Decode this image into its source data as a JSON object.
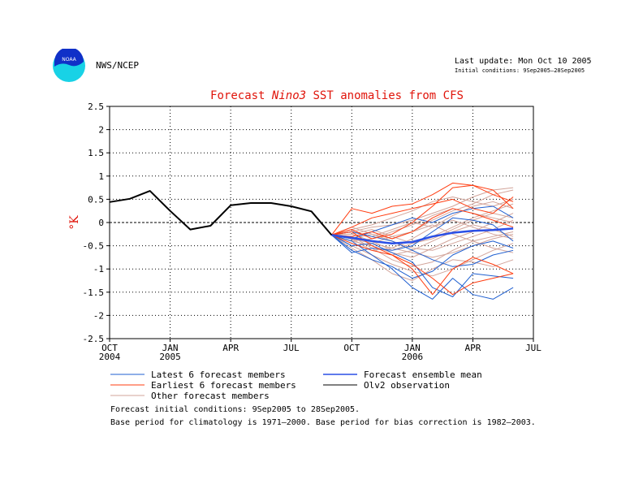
{
  "header": {
    "logo_text": "NOAA",
    "org": "NWS/NCEP",
    "last_update": "Last update: Mon Oct 10 2005",
    "initial_conditions": "Initial conditions: 9Sep2005–28Sep2005"
  },
  "colors": {
    "latest": "#1f5fd0",
    "earliest": "#ff3c10",
    "other": "#d2a49a",
    "ensemble_mean": "#2a4fe6",
    "observation": "#000000",
    "title": "#e0140a"
  },
  "chart_data": {
    "type": "line",
    "title_parts": [
      "Forecast ",
      "Nino3",
      "  SST anomalies from CFS"
    ],
    "ylabel": "°K",
    "ylim": [
      -2.5,
      2.5
    ],
    "yticks": [
      2.5,
      2,
      1.5,
      1,
      0.5,
      0,
      -0.5,
      -1,
      -1.5,
      -2,
      -2.5
    ],
    "ytick_labels": [
      "2.5",
      "2",
      "1.5",
      "1",
      "0.5",
      "0",
      "-0.5",
      "-1",
      "-1.5",
      "-2",
      "-2.5"
    ],
    "x_start": "2004-10",
    "x_end": "2006-07",
    "xticks": [
      {
        "month": "2004-10",
        "label": "OCT",
        "year": "2004"
      },
      {
        "month": "2005-01",
        "label": "JAN",
        "year": "2005"
      },
      {
        "month": "2005-04",
        "label": "APR",
        "year": ""
      },
      {
        "month": "2005-07",
        "label": "JUL",
        "year": ""
      },
      {
        "month": "2005-10",
        "label": "OCT",
        "year": ""
      },
      {
        "month": "2006-01",
        "label": "JAN",
        "year": "2006"
      },
      {
        "month": "2006-04",
        "label": "APR",
        "year": ""
      },
      {
        "month": "2006-07",
        "label": "JUL",
        "year": ""
      }
    ],
    "grid": true,
    "forecast_months": [
      "2005-09",
      "2005-10",
      "2005-11",
      "2005-12",
      "2006-01",
      "2006-02",
      "2006-03",
      "2006-04",
      "2006-05",
      "2006-06"
    ],
    "observation": {
      "name": "Olv2 observation",
      "months": [
        "2004-10",
        "2004-11",
        "2004-12",
        "2005-01",
        "2005-02",
        "2005-03",
        "2005-04",
        "2005-05",
        "2005-06",
        "2005-07",
        "2005-08",
        "2005-09"
      ],
      "values": [
        0.44,
        0.51,
        0.68,
        0.25,
        -0.15,
        -0.07,
        0.37,
        0.42,
        0.42,
        0.35,
        0.24,
        -0.27
      ]
    },
    "ensemble_mean": {
      "name": "Forecast ensemble mean",
      "values": [
        -0.27,
        -0.33,
        -0.4,
        -0.45,
        -0.42,
        -0.3,
        -0.22,
        -0.18,
        -0.16,
        -0.13
      ]
    },
    "latest_members": [
      [
        -0.27,
        -0.65,
        -0.55,
        -0.6,
        -0.5,
        -0.2,
        0.1,
        0.05,
        -0.05,
        -0.4
      ],
      [
        -0.27,
        -0.4,
        -0.7,
        -1.0,
        -1.4,
        -1.65,
        -1.2,
        -1.55,
        -1.65,
        -1.4
      ],
      [
        -0.27,
        -0.5,
        -0.45,
        -0.65,
        -0.85,
        -1.4,
        -1.6,
        -1.1,
        -1.15,
        -1.2
      ],
      [
        -0.27,
        -0.35,
        -0.2,
        -0.05,
        0.1,
        0.0,
        0.2,
        0.3,
        0.35,
        0.1
      ],
      [
        -0.27,
        -0.2,
        -0.3,
        -0.4,
        -0.6,
        -0.8,
        -0.95,
        -0.9,
        -0.7,
        -0.6
      ],
      [
        -0.27,
        -0.6,
        -0.8,
        -0.95,
        -1.2,
        -1.05,
        -0.7,
        -0.5,
        -0.4,
        -0.55
      ]
    ],
    "earliest_members": [
      [
        -0.27,
        0.3,
        0.2,
        0.35,
        0.4,
        0.6,
        0.85,
        0.8,
        0.6,
        0.45
      ],
      [
        -0.27,
        -0.2,
        -0.5,
        -0.7,
        -1.0,
        -1.55,
        -1.0,
        -0.75,
        -0.9,
        -1.1
      ],
      [
        -0.27,
        -0.1,
        0.1,
        0.2,
        0.3,
        0.4,
        0.5,
        0.3,
        0.2,
        0.55
      ],
      [
        -0.27,
        -0.45,
        -0.6,
        -0.7,
        -0.9,
        -1.2,
        -1.55,
        -1.3,
        -1.2,
        -1.1
      ],
      [
        -0.27,
        -0.3,
        -0.2,
        -0.35,
        -0.2,
        0.1,
        0.3,
        0.2,
        0.05,
        -0.1
      ],
      [
        -0.27,
        -0.15,
        -0.35,
        -0.25,
        0.0,
        0.35,
        0.75,
        0.8,
        0.7,
        0.3
      ]
    ],
    "other_members": [
      [
        -0.27,
        -0.1,
        -0.25,
        -0.35,
        -0.2,
        0.05,
        0.25,
        0.4,
        0.6,
        0.7
      ],
      [
        -0.27,
        -0.35,
        -0.45,
        -0.55,
        -0.65,
        -0.75,
        -0.65,
        -0.5,
        -0.35,
        -0.25
      ],
      [
        -0.27,
        -0.2,
        -0.1,
        -0.05,
        0.05,
        0.2,
        0.35,
        0.55,
        0.7,
        0.75
      ],
      [
        -0.27,
        -0.5,
        -0.7,
        -0.9,
        -1.05,
        -1.15,
        -1.0,
        -0.8,
        -0.6,
        -0.45
      ],
      [
        -0.27,
        -0.25,
        -0.4,
        -0.6,
        -0.45,
        -0.3,
        -0.1,
        0.1,
        0.25,
        0.4
      ],
      [
        -0.27,
        -0.4,
        -0.35,
        -0.2,
        -0.05,
        0.15,
        0.3,
        0.2,
        0.1,
        0.0
      ],
      [
        -0.27,
        -0.3,
        -0.55,
        -0.8,
        -0.95,
        -0.85,
        -0.6,
        -0.4,
        -0.3,
        -0.2
      ],
      [
        -0.27,
        -0.15,
        -0.05,
        0.1,
        0.25,
        0.45,
        0.55,
        0.45,
        0.35,
        0.5
      ],
      [
        -0.27,
        -0.45,
        -0.6,
        -0.55,
        -0.35,
        -0.1,
        0.05,
        -0.1,
        -0.25,
        -0.35
      ],
      [
        -0.27,
        -0.35,
        -0.25,
        -0.4,
        -0.55,
        -0.6,
        -0.45,
        -0.3,
        -0.15,
        0.05
      ],
      [
        -0.27,
        -0.55,
        -0.8,
        -1.1,
        -1.25,
        -1.0,
        -0.8,
        -0.85,
        -0.95,
        -0.8
      ],
      [
        -0.27,
        -0.2,
        -0.3,
        -0.15,
        0.0,
        -0.1,
        0.15,
        0.35,
        0.45,
        0.3
      ],
      [
        -0.27,
        -0.3,
        -0.45,
        -0.3,
        -0.2,
        -0.05,
        -0.25,
        -0.4,
        -0.55,
        -0.65
      ],
      [
        -0.27,
        -0.4,
        -0.5,
        -0.65,
        -0.75,
        -0.55,
        -0.35,
        -0.2,
        0.0,
        0.2
      ],
      [
        -0.27,
        -0.25,
        -0.15,
        -0.3,
        -0.45,
        -0.35,
        -0.15,
        0.05,
        0.2,
        0.1
      ],
      [
        -0.27,
        -0.35,
        -0.6,
        -0.7,
        -0.6,
        -0.4,
        -0.2,
        -0.05,
        -0.15,
        -0.3
      ]
    ]
  },
  "legend": {
    "latest": "Latest 6 forecast members",
    "earliest": "Earliest 6 forecast members",
    "other": "Other forecast members",
    "ensemble_mean": "Forecast ensemble mean",
    "observation": "Olv2 observation"
  },
  "notes": {
    "line1": "Forecast initial conditions: 9Sep2005 to 28Sep2005.",
    "line2": "Base period for climatology is 1971–2000. Base period for bias correction is 1982–2003."
  }
}
